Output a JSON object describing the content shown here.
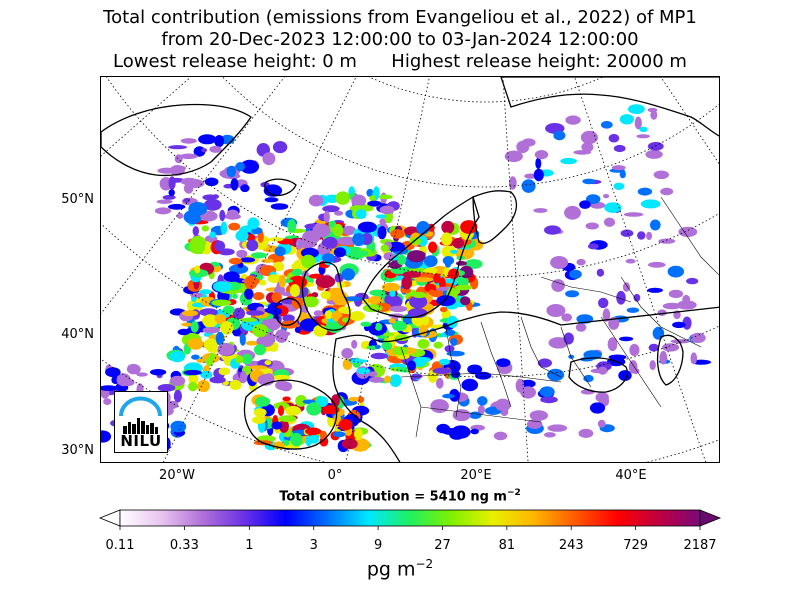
{
  "title": {
    "line1": "Total contribution (emissions from Evangeliou et al., 2022) of MP1",
    "line2": "from 20-Dec-2023 12:00:00 to 03-Jan-2024 12:00:00",
    "line3_left": "Lowest release height: 0 m",
    "line3_right": "Highest release height: 20000 m"
  },
  "chart_data": {
    "type": "heatmap",
    "description_type": "map",
    "lat_labels": [
      "50°N",
      "40°N",
      "30°N"
    ],
    "lon_labels": [
      "20°W",
      "0°",
      "20°E",
      "40°E"
    ],
    "total_text_prefix": "Total contribution = 5410 ng m",
    "total_text_exp": "−2",
    "colorbar": {
      "scale": "log",
      "ticks": [
        0.11,
        0.33,
        1,
        3,
        9,
        27,
        81,
        243,
        729,
        2187
      ],
      "tick_labels": [
        "0.11",
        "0.33",
        "1",
        "3",
        "9",
        "27",
        "81",
        "243",
        "729",
        "2187"
      ],
      "unit_label": "pg m",
      "unit_exp": "−2",
      "colors": [
        "#ffffff",
        "#e8c4ee",
        "#b070d8",
        "#6a32e6",
        "#0000ff",
        "#0070ff",
        "#00e8ff",
        "#20f060",
        "#80f000",
        "#e8f000",
        "#ffb400",
        "#ff5a00",
        "#ff0000",
        "#c00040",
        "#7a0a7a"
      ],
      "extend": "both"
    }
  },
  "logo": {
    "text": "NILU"
  }
}
